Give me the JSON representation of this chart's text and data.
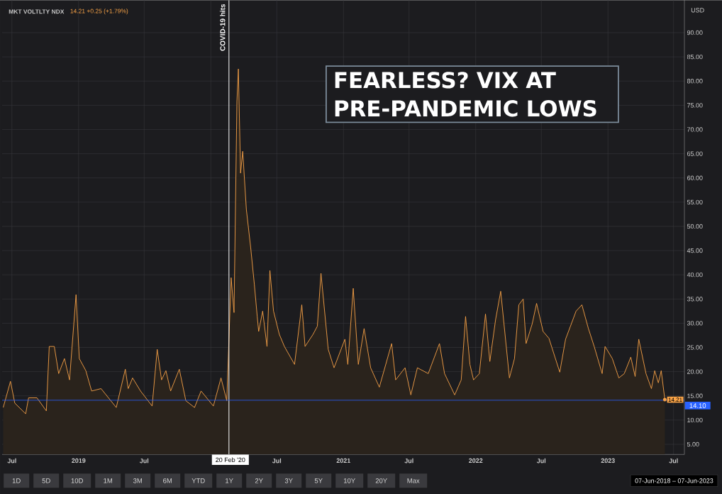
{
  "chart_data": {
    "type": "area",
    "title": "FEARLESS? VIX AT PRE-PANDEMIC LOWS",
    "subtitle": "MKT VOLTLTY NDX",
    "ylabel": "USD",
    "annotations": [
      "14.21 +0.25 (+1.79%)",
      "07-Jun-2018 – 07-Jun-2023",
      "20 Feb '20",
      "1D",
      "5D",
      "10D",
      "1M",
      "3M",
      "6M",
      "YTD",
      "1Y",
      "2Y",
      "3Y",
      "5Y",
      "10Y",
      "20Y",
      "Max",
      {
        "text": "14.21",
        "x": "2023-06-07",
        "y": 14.21
      }
    ],
    "x": [
      "2018-06-07",
      "2018-06-27",
      "2018-07-09",
      "2018-08-08",
      "2018-08-16",
      "2018-09-08",
      "2018-10-04",
      "2018-10-12",
      "2018-10-26",
      "2018-11-07",
      "2018-11-23",
      "2018-12-07",
      "2018-12-25",
      "2019-01-03",
      "2019-01-21",
      "2019-02-06",
      "2019-03-04",
      "2019-04-15",
      "2019-05-10",
      "2019-05-18",
      "2019-05-30",
      "2019-06-21",
      "2019-07-23",
      "2019-08-06",
      "2019-08-18",
      "2019-08-30",
      "2019-09-12",
      "2019-10-06",
      "2019-10-24",
      "2019-11-17",
      "2019-12-05",
      "2020-01-08",
      "2020-01-29",
      "2020-02-14",
      "2020-02-26",
      "2020-03-05",
      "2020-03-13",
      "2020-03-17",
      "2020-03-23",
      "2020-03-29",
      "2020-04-08",
      "2020-04-20",
      "2020-04-30",
      "2020-05-08",
      "2020-05-12",
      "2020-05-23",
      "2020-06-04",
      "2020-06-12",
      "2020-06-22",
      "2020-07-08",
      "2020-07-22",
      "2020-08-19",
      "2020-09-08",
      "2020-09-17",
      "2020-10-09",
      "2020-10-21",
      "2020-10-31",
      "2020-11-20",
      "2020-12-06",
      "2021-01-05",
      "2021-01-13",
      "2021-01-28",
      "2021-02-11",
      "2021-02-27",
      "2021-03-17",
      "2021-04-10",
      "2021-05-14",
      "2021-05-25",
      "2021-06-20",
      "2021-07-06",
      "2021-07-24",
      "2021-08-23",
      "2021-09-23",
      "2021-10-07",
      "2021-11-04",
      "2021-11-22",
      "2021-12-04",
      "2021-12-16",
      "2021-12-26",
      "2022-01-11",
      "2022-01-28",
      "2022-02-09",
      "2022-02-25",
      "2022-03-11",
      "2022-04-04",
      "2022-04-18",
      "2022-04-30",
      "2022-05-12",
      "2022-05-20",
      "2022-06-06",
      "2022-06-18",
      "2022-07-06",
      "2022-07-22",
      "2022-08-21",
      "2022-09-06",
      "2022-10-05",
      "2022-10-21",
      "2022-11-08",
      "2022-11-24",
      "2022-12-16",
      "2022-12-24",
      "2023-01-13",
      "2023-01-31",
      "2023-02-15",
      "2023-03-05",
      "2023-03-17",
      "2023-03-27",
      "2023-04-16",
      "2023-05-01",
      "2023-05-10",
      "2023-05-20",
      "2023-05-28",
      "2023-06-07"
    ],
    "series": [
      {
        "color": "#f7a247",
        "values": [
          12.6,
          18.0,
          13.5,
          11.3,
          14.6,
          14.6,
          11.9,
          25.2,
          25.2,
          19.6,
          22.7,
          18.3,
          35.9,
          22.7,
          20.2,
          16.0,
          16.5,
          12.6,
          20.5,
          16.5,
          18.7,
          16.0,
          12.9,
          24.6,
          18.3,
          20.2,
          16.0,
          20.5,
          14.0,
          12.6,
          16.0,
          12.9,
          18.7,
          14.0,
          39.4,
          32.2,
          75.8,
          82.5,
          61.0,
          65.5,
          53.5,
          45.6,
          38.1,
          31.4,
          28.3,
          32.5,
          25.2,
          40.9,
          32.5,
          27.7,
          25.2,
          21.5,
          33.8,
          25.2,
          27.7,
          29.4,
          40.3,
          24.6,
          20.8,
          26.7,
          21.5,
          37.2,
          21.5,
          28.9,
          20.8,
          16.8,
          25.8,
          18.3,
          20.8,
          15.2,
          20.8,
          19.6,
          25.8,
          19.6,
          15.2,
          18.3,
          31.4,
          21.5,
          18.3,
          19.6,
          31.9,
          22.1,
          30.8,
          36.6,
          18.7,
          22.7,
          33.8,
          35.0,
          25.8,
          29.9,
          34.1,
          28.3,
          26.9,
          19.9,
          26.7,
          32.5,
          33.8,
          28.9,
          25.2,
          19.6,
          25.2,
          22.7,
          18.7,
          19.6,
          23.0,
          19.0,
          26.7,
          19.6,
          16.5,
          20.2,
          17.7,
          20.2,
          14.2
        ]
      }
    ],
    "xlim": [
      "2018-06-04",
      "2023-07-31"
    ],
    "xticks": [
      {
        "value": "2018-07-01",
        "label": "Jul"
      },
      {
        "value": "2019-01-01",
        "label": "2019"
      },
      {
        "value": "2019-07-01",
        "label": "Jul"
      },
      {
        "value": "2020-01-01",
        "label": null
      },
      {
        "value": "2020-07-01",
        "label": "Jul"
      },
      {
        "value": "2021-01-01",
        "label": "2021"
      },
      {
        "value": "2021-07-01",
        "label": "Jul"
      },
      {
        "value": "2022-01-01",
        "label": "2022"
      },
      {
        "value": "2022-07-01",
        "label": "Jul"
      },
      {
        "value": "2023-01-01",
        "label": "2023"
      },
      {
        "value": "2023-07-01",
        "label": "Jul"
      }
    ],
    "ylim": [
      2.9,
      96.7
    ],
    "yticks": [
      {
        "value": 5,
        "label": "5.00"
      },
      {
        "value": 10,
        "label": "10.00"
      },
      {
        "value": 15,
        "label": "15.00"
      },
      {
        "value": 20,
        "label": "20.00"
      },
      {
        "value": 25,
        "label": "25.00"
      },
      {
        "value": 30,
        "label": "30.00"
      },
      {
        "value": 35,
        "label": "35.00"
      },
      {
        "value": 40,
        "label": "40.00"
      },
      {
        "value": 45,
        "label": "45.00"
      },
      {
        "value": 50,
        "label": "50.00"
      },
      {
        "value": 55,
        "label": "55.00"
      },
      {
        "value": 60,
        "label": "60.00"
      },
      {
        "value": 65,
        "label": "65.00"
      },
      {
        "value": 70,
        "label": "70.00"
      },
      {
        "value": 75,
        "label": "75.00"
      },
      {
        "value": 80,
        "label": "80.00"
      },
      {
        "value": 85,
        "label": "85.00"
      },
      {
        "value": 90,
        "label": "90.00"
      }
    ],
    "ref_lines": [
      {
        "axis": "x",
        "value": "2020-02-20",
        "label": "COVID-19 hits",
        "color": "#ffffff"
      },
      {
        "axis": "y",
        "value": 14.1,
        "label": "14.10",
        "color": "#2962ff"
      }
    ],
    "grid": true
  }
}
